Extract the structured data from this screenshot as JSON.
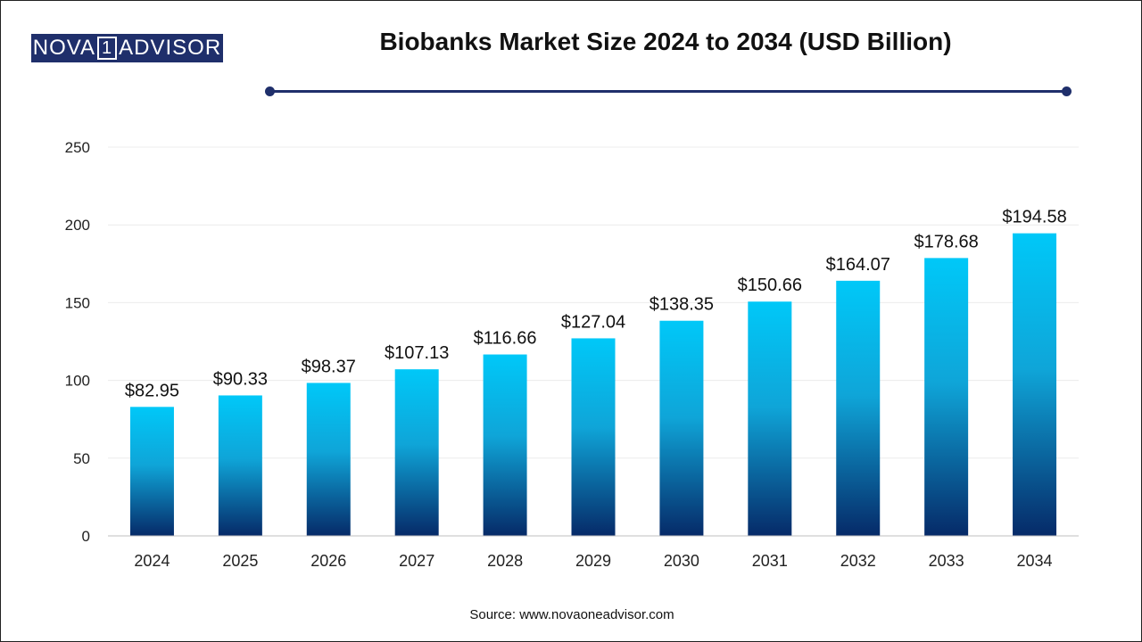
{
  "brand": {
    "logo_left": "NOVA",
    "logo_num": "1",
    "logo_right": "ADVISOR"
  },
  "source_text": "Source: www.novaoneadvisor.com",
  "colors": {
    "bar_top": "#00c8f8",
    "bar_bottom": "#062a68",
    "accent": "#1f2f6b"
  },
  "chart_data": {
    "type": "bar",
    "title": "Biobanks Market Size 2024 to 2034 (USD Billion)",
    "categories": [
      "2024",
      "2025",
      "2026",
      "2027",
      "2028",
      "2029",
      "2030",
      "2031",
      "2032",
      "2033",
      "2034"
    ],
    "values": [
      82.95,
      90.33,
      98.37,
      107.13,
      116.66,
      127.04,
      138.35,
      150.66,
      164.07,
      178.68,
      194.58
    ],
    "data_labels": [
      "$82.95",
      "$90.33",
      "$98.37",
      "$107.13",
      "$116.66",
      "$127.04",
      "$138.35",
      "$150.66",
      "$164.07",
      "$178.68",
      "$194.58"
    ],
    "ylim": [
      0,
      250
    ],
    "yticks": [
      "0",
      "50",
      "100",
      "150",
      "200",
      "250"
    ],
    "ytick_values": [
      0,
      50,
      100,
      150,
      200,
      250
    ],
    "xlabel": "",
    "ylabel": "",
    "grid": true,
    "legend": "none"
  }
}
